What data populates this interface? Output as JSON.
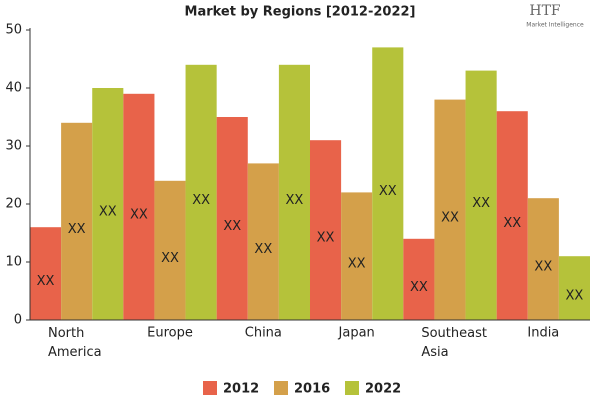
{
  "chart_data": {
    "type": "bar",
    "title": "Market by Regions [2012-2022]",
    "logo": {
      "brand": "HTF",
      "tagline": "Market Intelligence"
    },
    "categories": [
      "North America",
      "Europe",
      "China",
      "Japan",
      "Southeast Asia",
      "India"
    ],
    "series": [
      {
        "name": "2012",
        "color": "#e8634a",
        "values": [
          16,
          39,
          35,
          31,
          14,
          36
        ],
        "value_labels": [
          "XX",
          "XX",
          "XX",
          "XX",
          "XX",
          "XX"
        ]
      },
      {
        "name": "2016",
        "color": "#d4a04a",
        "values": [
          34,
          24,
          27,
          22,
          38,
          21
        ],
        "value_labels": [
          "XX",
          "XX",
          "XX",
          "XX",
          "XX",
          "XX"
        ]
      },
      {
        "name": "2022",
        "color": "#b5c23a",
        "values": [
          40,
          44,
          44,
          47,
          43,
          11
        ],
        "value_labels": [
          "XX",
          "XX",
          "XX",
          "XX",
          "XX",
          "XX"
        ]
      }
    ],
    "ylim": [
      0,
      50
    ],
    "yticks": [
      0,
      10,
      20,
      30,
      40,
      50
    ],
    "grid": false,
    "legend": "bottom"
  }
}
